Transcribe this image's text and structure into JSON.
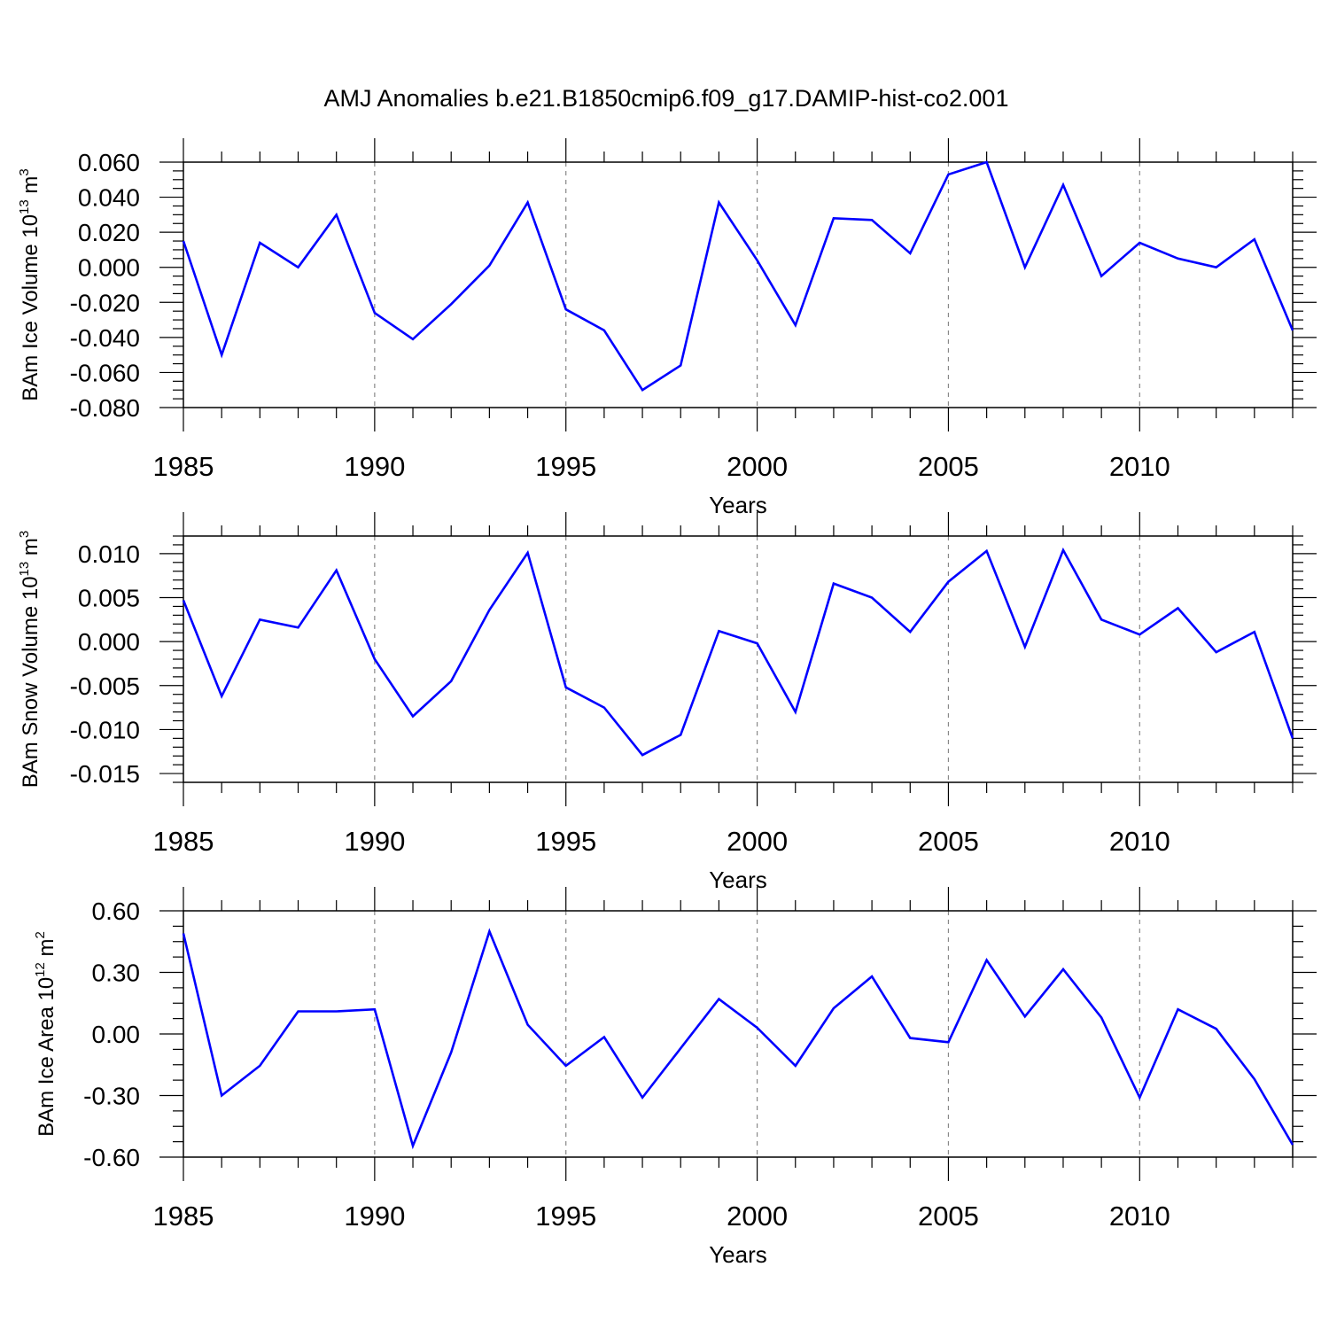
{
  "figure": {
    "title": "AMJ Anomalies b.e21.B1850cmip6.f09_g17.DAMIP-hist-co2.001",
    "line_color": "#0000ff",
    "grid_color": "#888888"
  },
  "chart_data": [
    {
      "type": "line",
      "title": "",
      "xlabel": "Years",
      "ylabel": {
        "prefix": "BAm Ice Volume 10",
        "exponent": "13",
        "unit": " m",
        "unit_exponent": "3"
      },
      "xlim": [
        1985,
        2014
      ],
      "ylim": [
        -0.08,
        0.06
      ],
      "x_ticks": [
        1985,
        1990,
        1995,
        2000,
        2005,
        2010
      ],
      "y_ticks": [
        -0.08,
        -0.06,
        -0.04,
        -0.02,
        0.0,
        0.02,
        0.04,
        0.06
      ],
      "y_tick_labels": [
        "-0.080",
        "-0.060",
        "-0.040",
        "-0.020",
        "0.000",
        "0.020",
        "0.040",
        "0.060"
      ],
      "y_minor_step": 0.005,
      "x": [
        1985,
        1986,
        1987,
        1988,
        1989,
        1990,
        1991,
        1992,
        1993,
        1994,
        1995,
        1996,
        1997,
        1998,
        1999,
        2000,
        2001,
        2002,
        2003,
        2004,
        2005,
        2006,
        2007,
        2008,
        2009,
        2010,
        2011,
        2012,
        2013,
        2014
      ],
      "series": [
        {
          "name": "BAm Ice Volume",
          "values": [
            0.015,
            -0.05,
            0.014,
            0.0,
            0.03,
            -0.026,
            -0.041,
            -0.021,
            0.001,
            0.037,
            -0.024,
            -0.036,
            -0.07,
            -0.056,
            0.037,
            0.004,
            -0.033,
            0.028,
            0.027,
            0.008,
            0.053,
            0.06,
            0.0,
            0.047,
            -0.005,
            0.014,
            0.005,
            0.0,
            0.016,
            -0.036
          ]
        }
      ]
    },
    {
      "type": "line",
      "title": "",
      "xlabel": "Years",
      "ylabel": {
        "prefix": "BAm Snow Volume 10",
        "exponent": "13",
        "unit": " m",
        "unit_exponent": "3"
      },
      "xlim": [
        1985,
        2014
      ],
      "ylim": [
        -0.016,
        0.012
      ],
      "x_ticks": [
        1985,
        1990,
        1995,
        2000,
        2005,
        2010
      ],
      "y_ticks": [
        -0.015,
        -0.01,
        -0.005,
        0.0,
        0.005,
        0.01
      ],
      "y_tick_labels": [
        "-0.015",
        "-0.010",
        "-0.005",
        "0.000",
        "0.005",
        "0.010"
      ],
      "y_minor_step": 0.001,
      "x": [
        1985,
        1986,
        1987,
        1988,
        1989,
        1990,
        1991,
        1992,
        1993,
        1994,
        1995,
        1996,
        1997,
        1998,
        1999,
        2000,
        2001,
        2002,
        2003,
        2004,
        2005,
        2006,
        2007,
        2008,
        2009,
        2010,
        2011,
        2012,
        2013,
        2014
      ],
      "series": [
        {
          "name": "BAm Snow Volume",
          "values": [
            0.0047,
            -0.0062,
            0.0025,
            0.0016,
            0.0081,
            -0.002,
            -0.0085,
            -0.0045,
            0.0036,
            0.0101,
            -0.0052,
            -0.0075,
            -0.0129,
            -0.0106,
            0.0012,
            -0.0002,
            -0.008,
            0.0066,
            0.005,
            0.0011,
            0.0068,
            0.0103,
            -0.0006,
            0.0104,
            0.0025,
            0.0008,
            0.0038,
            -0.0012,
            0.0011,
            -0.011
          ]
        }
      ]
    },
    {
      "type": "line",
      "title": "",
      "xlabel": "Years",
      "ylabel": {
        "prefix": "BAm Ice Area 10",
        "exponent": "12",
        "unit": " m",
        "unit_exponent": "2"
      },
      "xlim": [
        1985,
        2014
      ],
      "ylim": [
        -0.6,
        0.6
      ],
      "x_ticks": [
        1985,
        1990,
        1995,
        2000,
        2005,
        2010
      ],
      "y_ticks": [
        -0.6,
        -0.3,
        0.0,
        0.3,
        0.6
      ],
      "y_tick_labels": [
        "-0.60",
        "-0.30",
        "0.00",
        "0.30",
        "0.60"
      ],
      "y_minor_step": 0.075,
      "x": [
        1985,
        1986,
        1987,
        1988,
        1989,
        1990,
        1991,
        1992,
        1993,
        1994,
        1995,
        1996,
        1997,
        1998,
        1999,
        2000,
        2001,
        2002,
        2003,
        2004,
        2005,
        2006,
        2007,
        2008,
        2009,
        2010,
        2011,
        2012,
        2013,
        2014
      ],
      "series": [
        {
          "name": "BAm Ice Area",
          "values": [
            0.49,
            -0.3,
            -0.155,
            0.11,
            0.11,
            0.12,
            -0.545,
            -0.09,
            0.5,
            0.045,
            -0.155,
            -0.015,
            -0.31,
            -0.07,
            0.17,
            0.03,
            -0.155,
            0.125,
            0.28,
            -0.02,
            -0.04,
            0.36,
            0.085,
            0.315,
            0.08,
            -0.31,
            0.12,
            0.025,
            -0.22,
            -0.54
          ]
        }
      ]
    }
  ]
}
